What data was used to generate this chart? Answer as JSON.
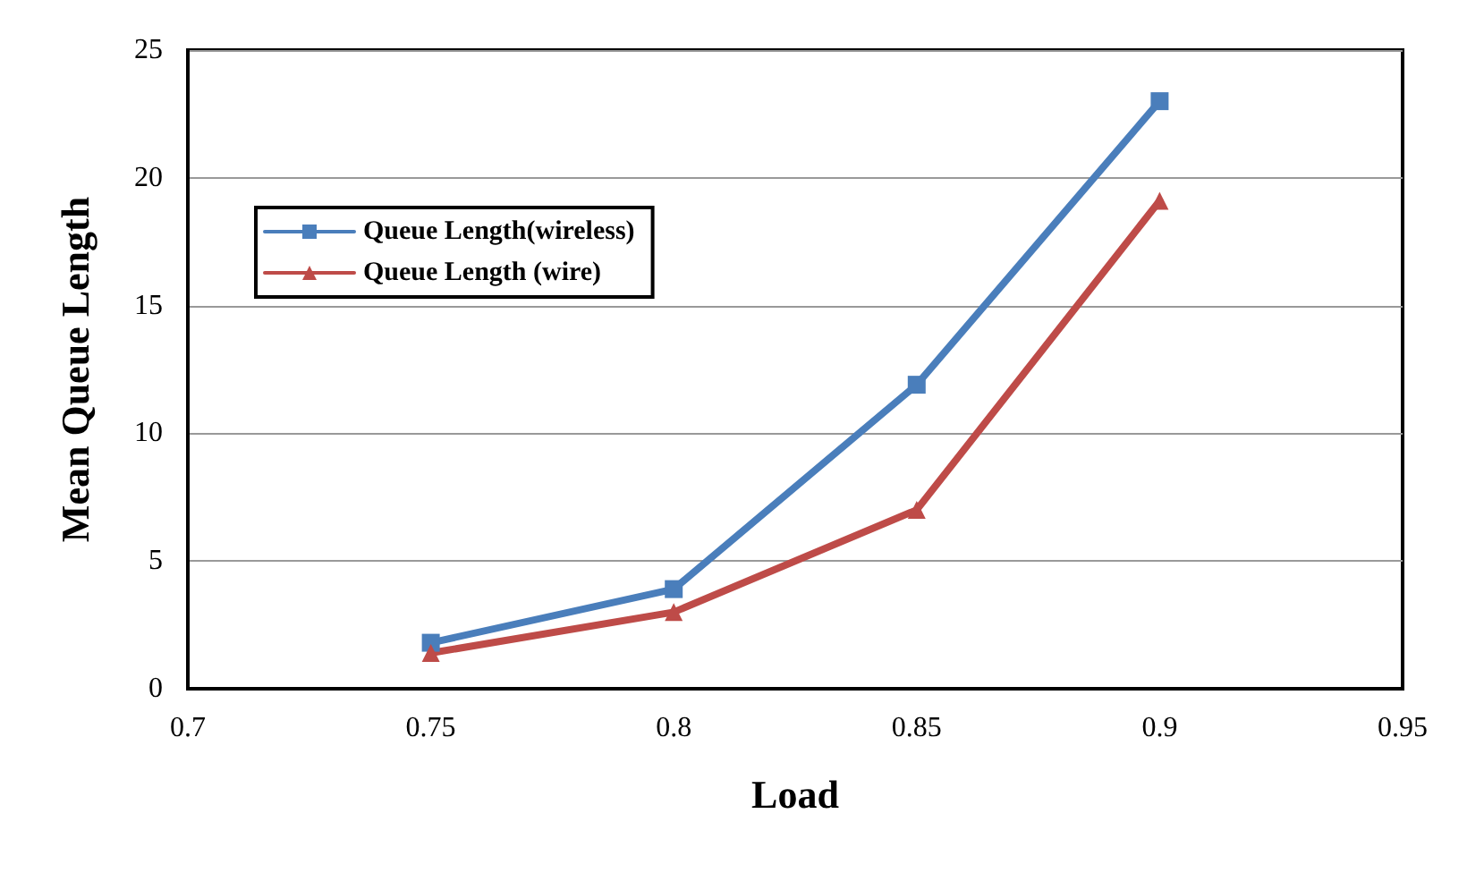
{
  "chart_data": {
    "type": "line",
    "xlabel": "Load",
    "ylabel": "Mean Queue Length",
    "x": [
      0.75,
      0.8,
      0.85,
      0.9
    ],
    "xlim": [
      0.7,
      0.95
    ],
    "xticks": [
      0.7,
      0.75,
      0.8,
      0.85,
      0.9,
      0.95
    ],
    "ylim": [
      0,
      25
    ],
    "yticks": [
      0,
      5,
      10,
      15,
      20,
      25
    ],
    "grid": "y",
    "legend": "top left",
    "series": [
      {
        "name": "Queue Length(wireless)",
        "color": "#4a7ebb",
        "marker": "square",
        "values": [
          1.8,
          3.9,
          11.9,
          23.0
        ]
      },
      {
        "name": "Queue Length (wire)",
        "color": "#be4b48",
        "marker": "triangle",
        "values": [
          1.4,
          3.0,
          7.0,
          19.1
        ]
      }
    ]
  }
}
